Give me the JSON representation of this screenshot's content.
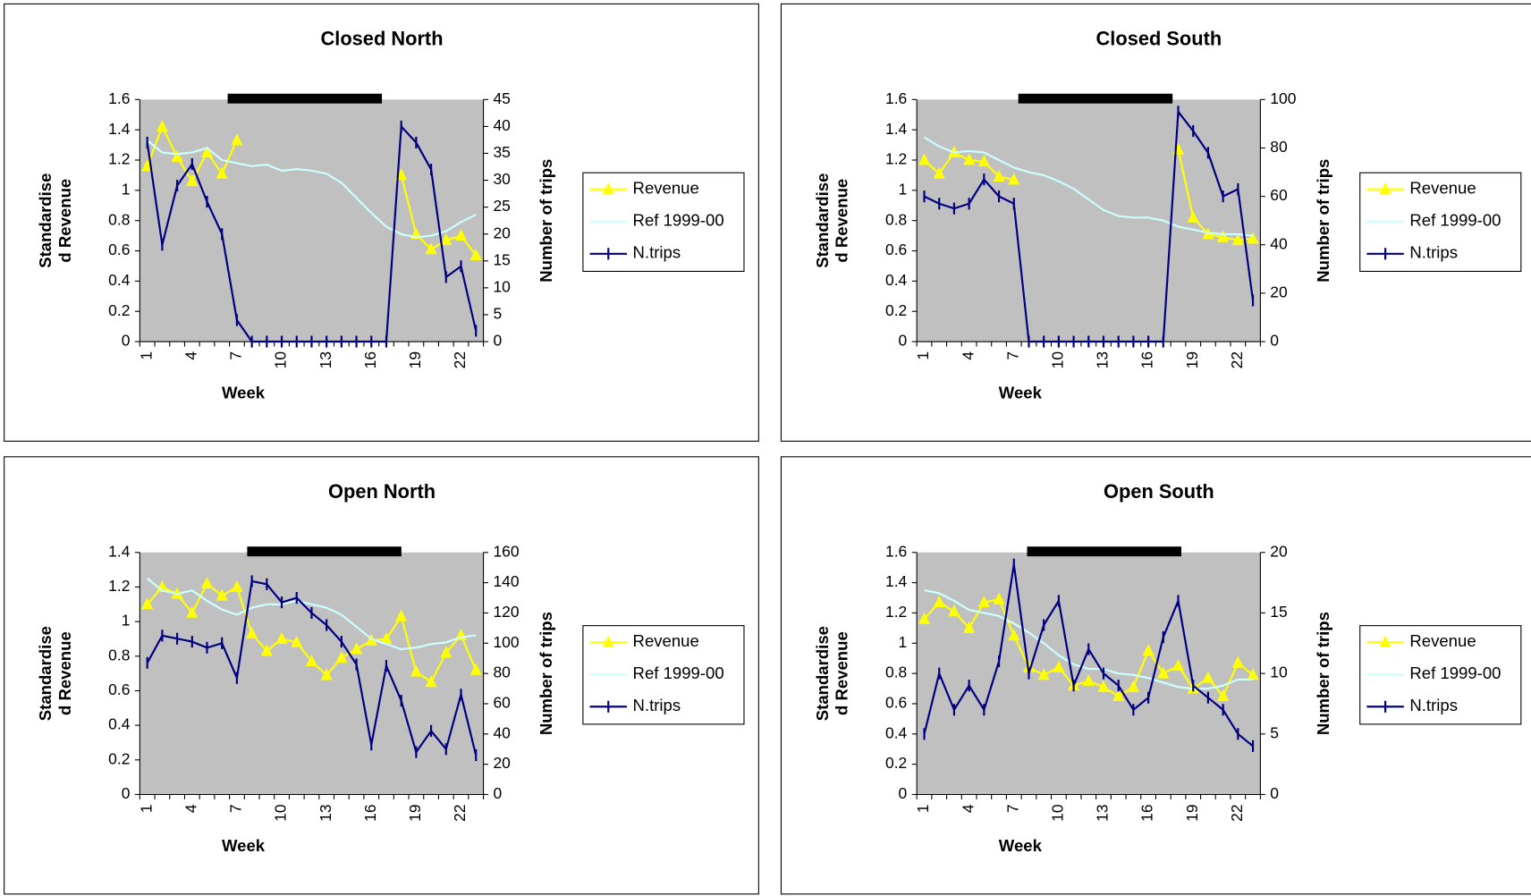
{
  "chart_data": [
    {
      "type": "line",
      "title": "Closed North",
      "xlabel": "Week",
      "ylabel": [
        "Standardise",
        "d Revenue"
      ],
      "y2label": "Number of trips",
      "legend": "right",
      "categories": [
        "1",
        null,
        null,
        "4",
        null,
        null,
        "7",
        null,
        null,
        "10",
        null,
        null,
        "13",
        null,
        null,
        "16",
        null,
        null,
        "19",
        null,
        null,
        "22",
        null
      ],
      "ylim": [
        0,
        1.6
      ],
      "yticks": [
        0,
        0.2,
        0.4,
        0.6,
        0.8,
        1,
        1.2,
        1.4,
        1.6
      ],
      "y2lim": [
        0,
        45
      ],
      "y2ticks": [
        0,
        5,
        10,
        15,
        20,
        25,
        30,
        35,
        40,
        45
      ],
      "series": [
        {
          "name": "Revenue",
          "color": "#ffff00",
          "marker": "triangle",
          "values": [
            1.16,
            1.42,
            1.22,
            1.06,
            1.25,
            1.11,
            1.33,
            null,
            null,
            null,
            null,
            null,
            null,
            null,
            null,
            null,
            null,
            1.1,
            0.71,
            0.61,
            0.67,
            0.7,
            0.57
          ]
        },
        {
          "name": "Ref 1999-00",
          "color": "#ccffff",
          "values": [
            1.33,
            1.25,
            1.24,
            1.25,
            1.28,
            1.2,
            1.18,
            1.16,
            1.17,
            1.13,
            1.14,
            1.13,
            1.11,
            1.05,
            0.95,
            0.85,
            0.76,
            0.71,
            0.69,
            0.7,
            0.73,
            0.79,
            0.84
          ]
        },
        {
          "name": "N.trips",
          "color": "#000080",
          "marker": "dash",
          "axis": "y2",
          "values": [
            37,
            18,
            29,
            33,
            26,
            20,
            4,
            0,
            0,
            0,
            0,
            0,
            0,
            0,
            0,
            0,
            0,
            40,
            37,
            32,
            12,
            14,
            2
          ]
        }
      ]
    },
    {
      "type": "line",
      "title": "Closed South",
      "xlabel": "Week",
      "ylabel": [
        "Standardise",
        "d Revenue"
      ],
      "y2label": "Number of trips",
      "legend": "right",
      "categories": [
        "1",
        null,
        null,
        "4",
        null,
        null,
        "7",
        null,
        null,
        "10",
        null,
        null,
        "13",
        null,
        null,
        "16",
        null,
        null,
        "19",
        null,
        null,
        "22",
        null
      ],
      "ylim": [
        0,
        1.6
      ],
      "yticks": [
        0,
        0.2,
        0.4,
        0.6,
        0.8,
        1,
        1.2,
        1.4,
        1.6
      ],
      "y2lim": [
        0,
        100
      ],
      "y2ticks": [
        0,
        20,
        40,
        60,
        80,
        100
      ],
      "series": [
        {
          "name": "Revenue",
          "color": "#ffff00",
          "marker": "triangle",
          "values": [
            1.2,
            1.11,
            1.25,
            1.2,
            1.19,
            1.09,
            1.07,
            null,
            null,
            null,
            null,
            null,
            null,
            null,
            null,
            null,
            null,
            1.27,
            0.82,
            0.71,
            0.69,
            0.67,
            0.68
          ]
        },
        {
          "name": "Ref 1999-00",
          "color": "#ccffff",
          "values": [
            1.35,
            1.29,
            1.25,
            1.26,
            1.25,
            1.2,
            1.15,
            1.12,
            1.1,
            1.06,
            1.01,
            0.94,
            0.87,
            0.83,
            0.82,
            0.82,
            0.8,
            0.76,
            0.74,
            0.72,
            0.71,
            0.71,
            0.7
          ]
        },
        {
          "name": "N.trips",
          "color": "#000080",
          "marker": "dash",
          "axis": "y2",
          "values": [
            60,
            57,
            55,
            57,
            67,
            60,
            57,
            0,
            0,
            0,
            0,
            0,
            0,
            0,
            0,
            0,
            0,
            95,
            87,
            78,
            60,
            63,
            17
          ]
        }
      ]
    },
    {
      "type": "line",
      "title": "Open North",
      "xlabel": "Week",
      "ylabel": [
        "Standardise",
        "d Revenue"
      ],
      "y2label": "Number of trips",
      "legend": "right",
      "categories": [
        "1",
        null,
        null,
        "4",
        null,
        null,
        "7",
        null,
        null,
        "10",
        null,
        null,
        "13",
        null,
        null,
        "16",
        null,
        null,
        "19",
        null,
        null,
        "22",
        null
      ],
      "ylim": [
        0,
        1.4
      ],
      "yticks": [
        0,
        0.2,
        0.4,
        0.6,
        0.8,
        1,
        1.2,
        1.4
      ],
      "y2lim": [
        0,
        160
      ],
      "y2ticks": [
        0,
        20,
        40,
        60,
        80,
        100,
        120,
        140,
        160
      ],
      "series": [
        {
          "name": "Revenue",
          "color": "#ffff00",
          "marker": "triangle",
          "values": [
            1.1,
            1.2,
            1.16,
            1.05,
            1.22,
            1.15,
            1.2,
            0.93,
            0.83,
            0.9,
            0.88,
            0.77,
            0.69,
            0.79,
            0.84,
            0.89,
            0.9,
            1.03,
            0.71,
            0.65,
            0.82,
            0.92,
            0.72
          ]
        },
        {
          "name": "Ref 1999-00",
          "color": "#ccffff",
          "values": [
            1.25,
            1.18,
            1.16,
            1.18,
            1.12,
            1.07,
            1.04,
            1.08,
            1.1,
            1.1,
            1.12,
            1.1,
            1.08,
            1.04,
            0.97,
            0.9,
            0.87,
            0.84,
            0.85,
            0.87,
            0.88,
            0.91,
            0.92
          ]
        },
        {
          "name": "N.trips",
          "color": "#000080",
          "marker": "dash",
          "axis": "y2",
          "values": [
            87,
            105,
            103,
            101,
            97,
            100,
            77,
            141,
            139,
            127,
            130,
            120,
            112,
            101,
            86,
            33,
            85,
            62,
            28,
            42,
            30,
            66,
            26
          ]
        }
      ]
    },
    {
      "type": "line",
      "title": "Open South",
      "xlabel": "Week",
      "ylabel": [
        "Standardise",
        "d Revenue"
      ],
      "y2label": "Number of trips",
      "legend": "right",
      "categories": [
        "1",
        null,
        null,
        "4",
        null,
        null,
        "7",
        null,
        null,
        "10",
        null,
        null,
        "13",
        null,
        null,
        "16",
        null,
        null,
        "19",
        null,
        null,
        "22",
        null
      ],
      "ylim": [
        0,
        1.6
      ],
      "yticks": [
        0,
        0.2,
        0.4,
        0.6,
        0.8,
        1,
        1.2,
        1.4,
        1.6
      ],
      "y2lim": [
        0,
        20
      ],
      "y2ticks": [
        0,
        5,
        10,
        15,
        20
      ],
      "series": [
        {
          "name": "Revenue",
          "color": "#ffff00",
          "marker": "triangle",
          "values": [
            1.16,
            1.27,
            1.21,
            1.1,
            1.27,
            1.29,
            1.05,
            0.84,
            0.79,
            0.84,
            0.72,
            0.75,
            0.71,
            0.65,
            0.71,
            0.95,
            0.8,
            0.85,
            0.7,
            0.77,
            0.65,
            0.87,
            0.79
          ]
        },
        {
          "name": "Ref 1999-00",
          "color": "#ccffff",
          "values": [
            1.35,
            1.33,
            1.28,
            1.22,
            1.2,
            1.18,
            1.13,
            1.07,
            1.0,
            0.92,
            0.86,
            0.83,
            0.83,
            0.8,
            0.79,
            0.77,
            0.74,
            0.71,
            0.7,
            0.7,
            0.72,
            0.76,
            0.76
          ]
        },
        {
          "name": "N.trips",
          "color": "#000080",
          "marker": "dash",
          "axis": "y2",
          "values": [
            5,
            10,
            7,
            9,
            7,
            11,
            19,
            10,
            14,
            16,
            9,
            12,
            10,
            9,
            7,
            8,
            13,
            16,
            9,
            8,
            7,
            5,
            4
          ]
        }
      ]
    }
  ]
}
